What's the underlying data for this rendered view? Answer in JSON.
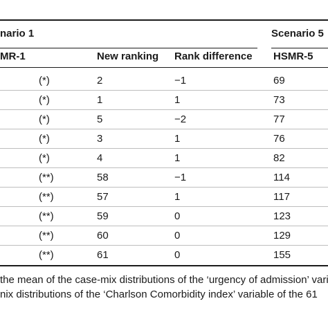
{
  "header": {
    "scenario_1_label": "nario 1",
    "scenario_5_label": "Scenario 5",
    "columns": {
      "hsmr1": "MR-1",
      "new_ranking": "New ranking",
      "rank_difference": "Rank difference",
      "hsmr5": "HSMR-5"
    }
  },
  "rows": [
    {
      "hsmr1": "(*)",
      "new_ranking": "2",
      "rank_difference": "−1",
      "hsmr5": "69"
    },
    {
      "hsmr1": "(*)",
      "new_ranking": "1",
      "rank_difference": "1",
      "hsmr5": "73"
    },
    {
      "hsmr1": "(*)",
      "new_ranking": "5",
      "rank_difference": "−2",
      "hsmr5": "77"
    },
    {
      "hsmr1": "(*)",
      "new_ranking": "3",
      "rank_difference": "1",
      "hsmr5": "76"
    },
    {
      "hsmr1": "(*)",
      "new_ranking": "4",
      "rank_difference": "1",
      "hsmr5": "82"
    },
    {
      "hsmr1": "(**)",
      "new_ranking": "58",
      "rank_difference": "−1",
      "hsmr5": "114"
    },
    {
      "hsmr1": "(**)",
      "new_ranking": "57",
      "rank_difference": "1",
      "hsmr5": "117"
    },
    {
      "hsmr1": "(**)",
      "new_ranking": "59",
      "rank_difference": "0",
      "hsmr5": "123"
    },
    {
      "hsmr1": "(**)",
      "new_ranking": "60",
      "rank_difference": "0",
      "hsmr5": "129"
    },
    {
      "hsmr1": "(**)",
      "new_ranking": "61",
      "rank_difference": "0",
      "hsmr5": "155"
    }
  ],
  "footnotes": [
    "the mean of the case-mix distributions of the ‘urgency of admission’ vari",
    "nix distributions of the ‘Charlson Comorbidity index’ variable of the 61"
  ]
}
